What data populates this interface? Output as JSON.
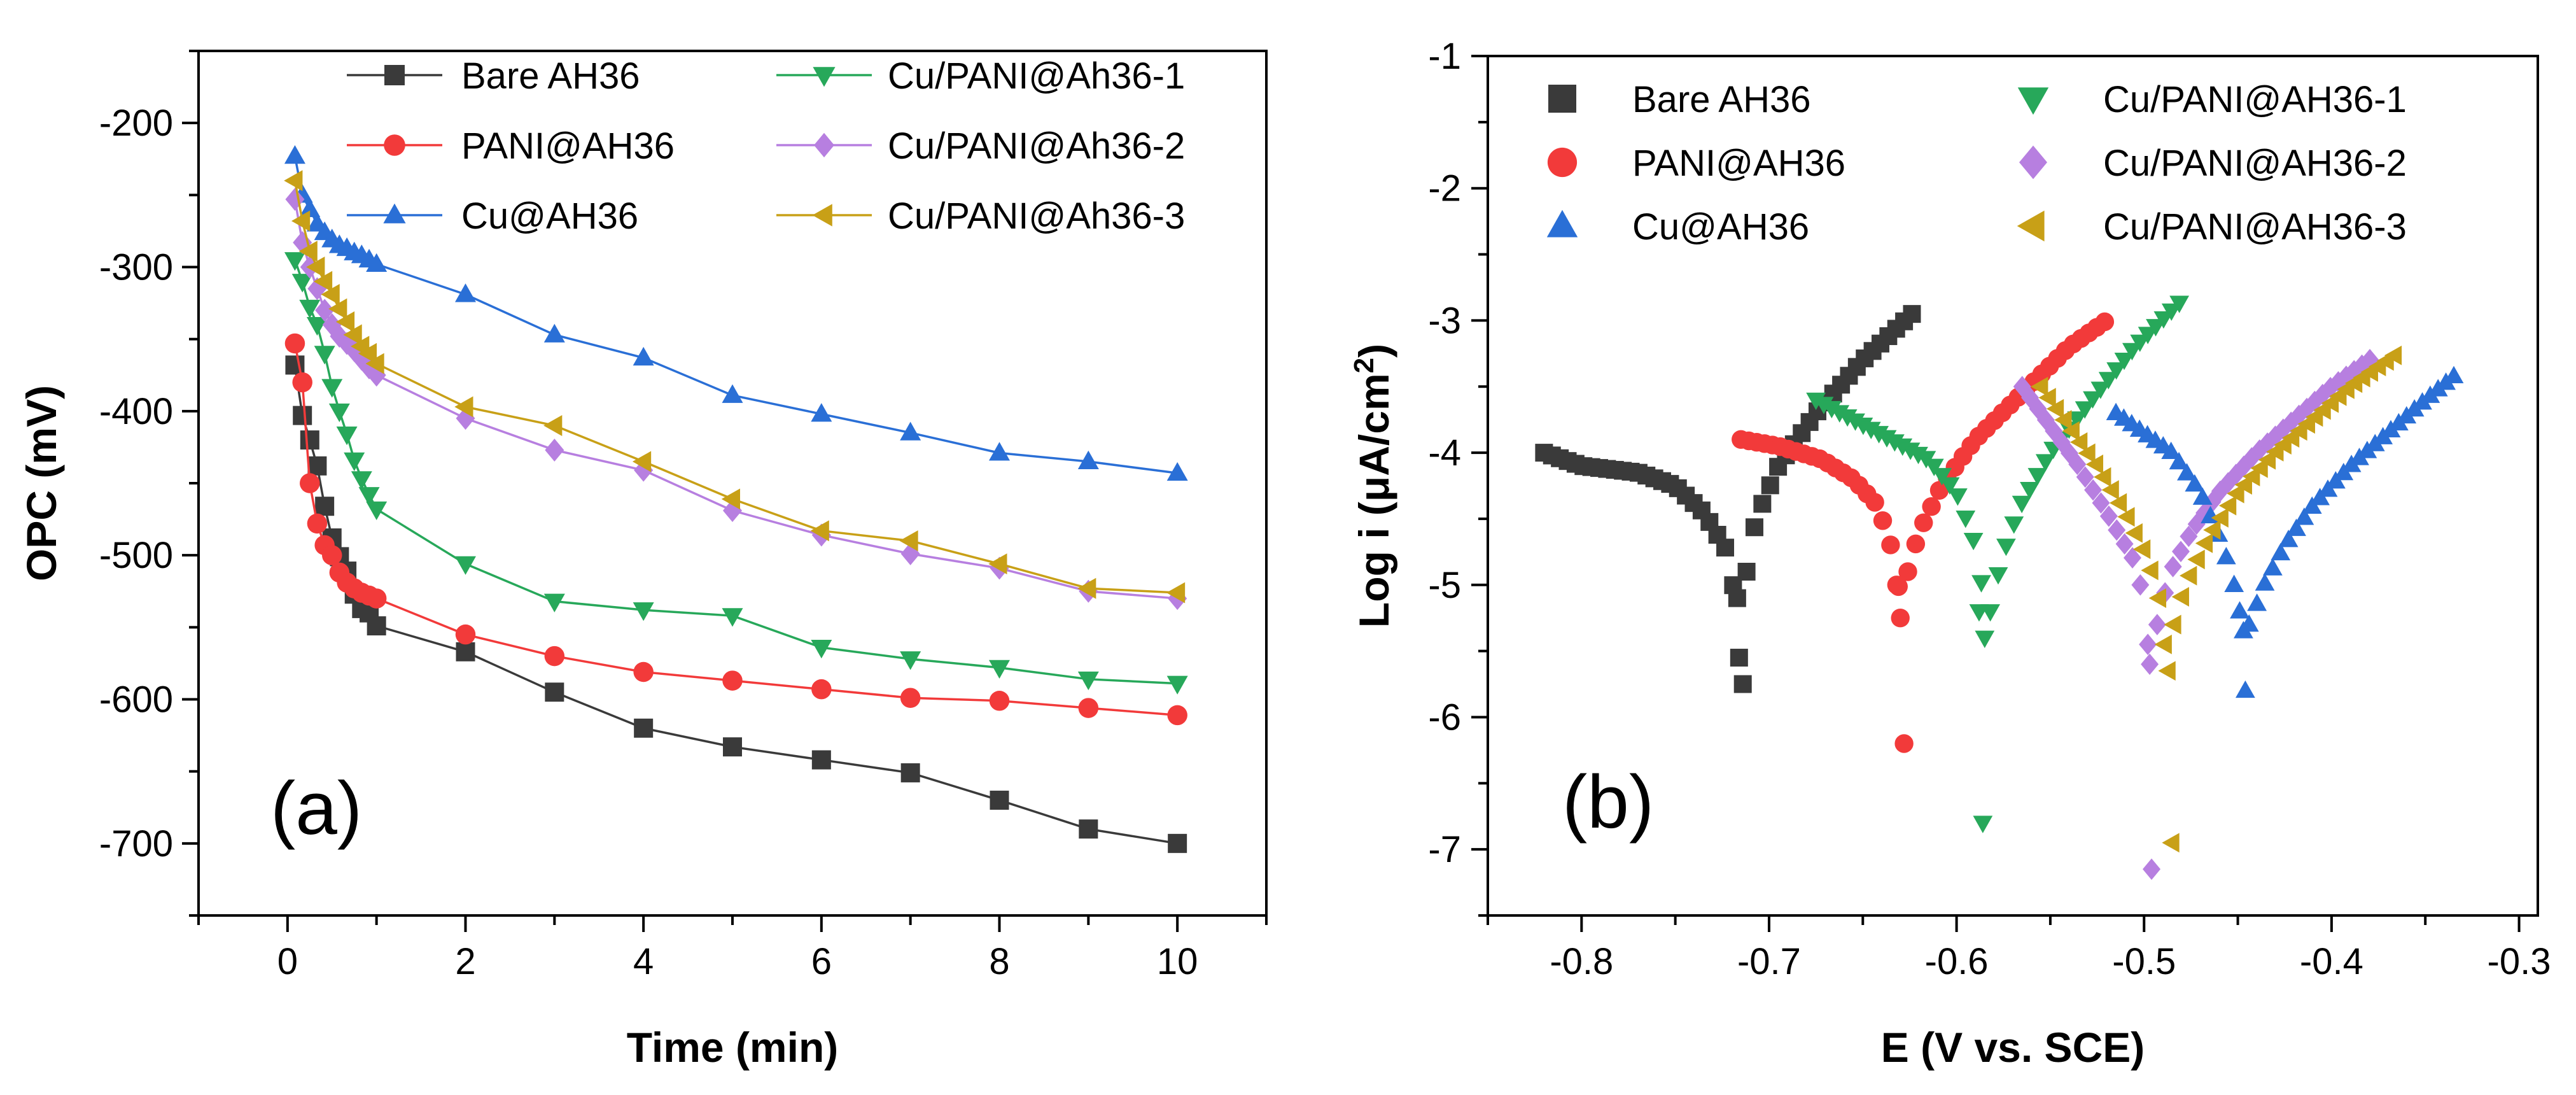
{
  "chart_data": [
    {
      "type": "line",
      "panel_label": "(a)",
      "xlabel": "Time (min)",
      "ylabel": "OPC (mV)",
      "xlim": [
        -1,
        11
      ],
      "ylim": [
        -750,
        -150
      ],
      "xticks": [
        0,
        2,
        4,
        6,
        8,
        10
      ],
      "yticks": [
        -200,
        -300,
        -400,
        -500,
        -600,
        -700
      ],
      "legend_position": "top",
      "x": [
        0.083,
        0.167,
        0.25,
        0.333,
        0.417,
        0.5,
        0.583,
        0.667,
        0.75,
        0.833,
        0.917,
        1,
        2,
        3,
        4,
        5,
        6,
        7,
        8,
        9,
        10
      ],
      "series": [
        {
          "name": "Bare AH36",
          "color": "#3a3a3a",
          "marker": "square",
          "values": [
            -368,
            -403,
            -420,
            -438,
            -466,
            -488,
            -501,
            -511,
            -527,
            -537,
            -540,
            -549,
            -567,
            -595,
            -620,
            -633,
            -642,
            -651,
            -670,
            -690,
            -700
          ]
        },
        {
          "name": "PANI@AH36",
          "color": "#f23a3a",
          "marker": "circle",
          "values": [
            -353,
            -380,
            -450,
            -478,
            -493,
            -500,
            -512,
            -519,
            -523,
            -526,
            -528,
            -530,
            -555,
            -570,
            -581,
            -587,
            -593,
            -599,
            -601,
            -606,
            -611
          ]
        },
        {
          "name": "Cu@AH36",
          "color": "#2a6fd6",
          "marker": "triangle-up",
          "values": [
            -223,
            -250,
            -260,
            -270,
            -276,
            -281,
            -285,
            -287,
            -290,
            -292,
            -295,
            -298,
            -319,
            -347,
            -363,
            -389,
            -402,
            -415,
            -429,
            -435,
            -443
          ]
        },
        {
          "name": "Cu/PANI@Ah36-1",
          "color": "#27a85a",
          "marker": "triangle-down",
          "values": [
            -295,
            -310,
            -328,
            -340,
            -360,
            -383,
            -400,
            -416,
            -434,
            -447,
            -458,
            -468,
            -506,
            -532,
            -538,
            -542,
            -564,
            -572,
            -578,
            -586,
            -589
          ]
        },
        {
          "name": "Cu/PANI@Ah36-2",
          "color": "#b77fe0",
          "marker": "diamond",
          "values": [
            -253,
            -283,
            -300,
            -315,
            -330,
            -340,
            -348,
            -353,
            -358,
            -364,
            -370,
            -375,
            -405,
            -427,
            -441,
            -469,
            -486,
            -499,
            -509,
            -525,
            -530
          ]
        },
        {
          "name": "Cu/PANI@Ah36-3",
          "color": "#c8a017",
          "marker": "triangle-left",
          "values": [
            -240,
            -268,
            -289,
            -300,
            -310,
            -319,
            -329,
            -338,
            -347,
            -355,
            -360,
            -367,
            -397,
            -410,
            -435,
            -461,
            -483,
            -490,
            -506,
            -523,
            -526
          ]
        }
      ]
    },
    {
      "type": "scatter",
      "panel_label": "(b)",
      "xlabel": "E (V vs. SCE)",
      "ylabel_main": "Log i (",
      "ylabel_mu": "μ",
      "ylabel_unit": "A/cm",
      "ylabel_sup": "2",
      "ylabel_close": ")",
      "xlim": [
        -0.85,
        -0.29
      ],
      "ylim": [
        -7.5,
        -1
      ],
      "xticks": [
        -0.8,
        -0.7,
        -0.6,
        -0.5,
        -0.4,
        -0.3
      ],
      "xtick_labels": [
        "-0.8",
        "-0.7",
        "-0.6",
        "-0.5",
        "-0.4",
        "-0.3"
      ],
      "yticks": [
        -1,
        -2,
        -3,
        -4,
        -5,
        -6,
        -7
      ],
      "legend_position": "top",
      "series": [
        {
          "name": "Bare AH36",
          "color": "#3a3a3a",
          "marker": "square",
          "ecorr": -0.715,
          "start": -0.82,
          "end": -0.62,
          "anodic": [
            [
              -0.712,
              -4.9
            ],
            [
              -0.707,
              -4.5
            ],
            [
              -0.695,
              -4.1
            ],
            [
              -0.675,
              -3.7
            ],
            [
              -0.65,
              -3.3
            ],
            [
              -0.62,
              -2.9
            ]
          ],
          "cathodic": [
            [
              -0.82,
              -4.0
            ],
            [
              -0.8,
              -4.1
            ],
            [
              -0.77,
              -4.15
            ],
            [
              -0.75,
              -4.25
            ],
            [
              -0.735,
              -4.45
            ],
            [
              -0.722,
              -4.75
            ],
            [
              -0.717,
              -5.2
            ]
          ],
          "scatter": [
            [
              -0.716,
              -5.55
            ],
            [
              -0.714,
              -5.75
            ],
            [
              -0.717,
              -5.1
            ]
          ]
        },
        {
          "name": "PANI@AH36",
          "color": "#f23a3a",
          "marker": "circle",
          "ecorr": -0.628,
          "start": -0.715,
          "end": -0.518,
          "anodic": [
            [
              -0.626,
              -4.9
            ],
            [
              -0.62,
              -4.6
            ],
            [
              -0.608,
              -4.25
            ],
            [
              -0.59,
              -3.9
            ],
            [
              -0.565,
              -3.55
            ],
            [
              -0.54,
              -3.2
            ],
            [
              -0.518,
              -2.98
            ]
          ],
          "cathodic": [
            [
              -0.715,
              -3.9
            ],
            [
              -0.695,
              -3.95
            ],
            [
              -0.672,
              -4.05
            ],
            [
              -0.655,
              -4.2
            ],
            [
              -0.642,
              -4.4
            ],
            [
              -0.634,
              -4.75
            ],
            [
              -0.63,
              -5.1
            ]
          ],
          "scatter": [
            [
              -0.63,
              -5.25
            ],
            [
              -0.628,
              -6.2
            ],
            [
              -0.632,
              -5.0
            ]
          ]
        },
        {
          "name": "Cu/PANI@AH36-1",
          "color": "#27a85a",
          "marker": "triangle-down",
          "ecorr": -0.585,
          "start": -0.675,
          "end": -0.48,
          "anodic": [
            [
              -0.582,
              -5.2
            ],
            [
              -0.576,
              -4.8
            ],
            [
              -0.566,
              -4.4
            ],
            [
              -0.55,
              -4.0
            ],
            [
              -0.528,
              -3.6
            ],
            [
              -0.505,
              -3.2
            ],
            [
              -0.48,
              -2.85
            ]
          ],
          "cathodic": [
            [
              -0.675,
              -3.6
            ],
            [
              -0.655,
              -3.75
            ],
            [
              -0.635,
              -3.9
            ],
            [
              -0.615,
              -4.05
            ],
            [
              -0.6,
              -4.3
            ],
            [
              -0.59,
              -4.7
            ],
            [
              -0.586,
              -5.05
            ]
          ],
          "scatter": [
            [
              -0.585,
              -5.4
            ],
            [
              -0.586,
              -6.8
            ],
            [
              -0.588,
              -5.2
            ]
          ]
        },
        {
          "name": "Cu/PANI@AH36-2",
          "color": "#b77fe0",
          "marker": "diamond",
          "ecorr": -0.496,
          "start": -0.565,
          "end": -0.378,
          "anodic": [
            [
              -0.493,
              -5.3
            ],
            [
              -0.486,
              -4.9
            ],
            [
              -0.475,
              -4.6
            ],
            [
              -0.46,
              -4.3
            ],
            [
              -0.44,
              -4.0
            ],
            [
              -0.42,
              -3.75
            ],
            [
              -0.4,
              -3.5
            ],
            [
              -0.378,
              -3.28
            ]
          ],
          "cathodic": [
            [
              -0.565,
              -3.5
            ],
            [
              -0.55,
              -3.8
            ],
            [
              -0.535,
              -4.1
            ],
            [
              -0.52,
              -4.45
            ],
            [
              -0.506,
              -4.8
            ],
            [
              -0.498,
              -5.2
            ]
          ],
          "scatter": [
            [
              -0.497,
              -5.6
            ],
            [
              -0.496,
              -7.15
            ],
            [
              -0.498,
              -5.45
            ]
          ]
        },
        {
          "name": "Cu@AH36",
          "color": "#2a6fd6",
          "marker": "triangle-up",
          "ecorr": -0.447,
          "start": -0.515,
          "end": -0.333,
          "anodic": [
            [
              -0.444,
              -5.3
            ],
            [
              -0.436,
              -5.0
            ],
            [
              -0.425,
              -4.7
            ],
            [
              -0.41,
              -4.4
            ],
            [
              -0.39,
              -4.1
            ],
            [
              -0.37,
              -3.85
            ],
            [
              -0.35,
              -3.6
            ],
            [
              -0.333,
              -3.4
            ]
          ],
          "cathodic": [
            [
              -0.515,
              -3.7
            ],
            [
              -0.5,
              -3.85
            ],
            [
              -0.485,
              -4.0
            ],
            [
              -0.47,
              -4.3
            ],
            [
              -0.458,
              -4.7
            ],
            [
              -0.45,
              -5.1
            ]
          ],
          "scatter": [
            [
              -0.446,
              -5.8
            ],
            [
              -0.447,
              -5.35
            ],
            [
              -0.449,
              -5.2
            ]
          ]
        },
        {
          "name": "Cu/PANI@AH36-3",
          "color": "#c8a017",
          "marker": "triangle-left",
          "ecorr": -0.487,
          "start": -0.555,
          "end": -0.365,
          "anodic": [
            [
              -0.484,
              -5.3
            ],
            [
              -0.478,
              -5.0
            ],
            [
              -0.466,
              -4.65
            ],
            [
              -0.45,
              -4.3
            ],
            [
              -0.43,
              -4.0
            ],
            [
              -0.41,
              -3.75
            ],
            [
              -0.39,
              -3.5
            ],
            [
              -0.365,
              -3.25
            ]
          ],
          "cathodic": [
            [
              -0.555,
              -3.5
            ],
            [
              -0.54,
              -3.8
            ],
            [
              -0.525,
              -4.1
            ],
            [
              -0.51,
              -4.45
            ],
            [
              -0.498,
              -4.8
            ],
            [
              -0.49,
              -5.2
            ]
          ],
          "scatter": [
            [
              -0.487,
              -5.65
            ],
            [
              -0.485,
              -6.95
            ],
            [
              -0.489,
              -5.45
            ]
          ]
        }
      ]
    }
  ]
}
